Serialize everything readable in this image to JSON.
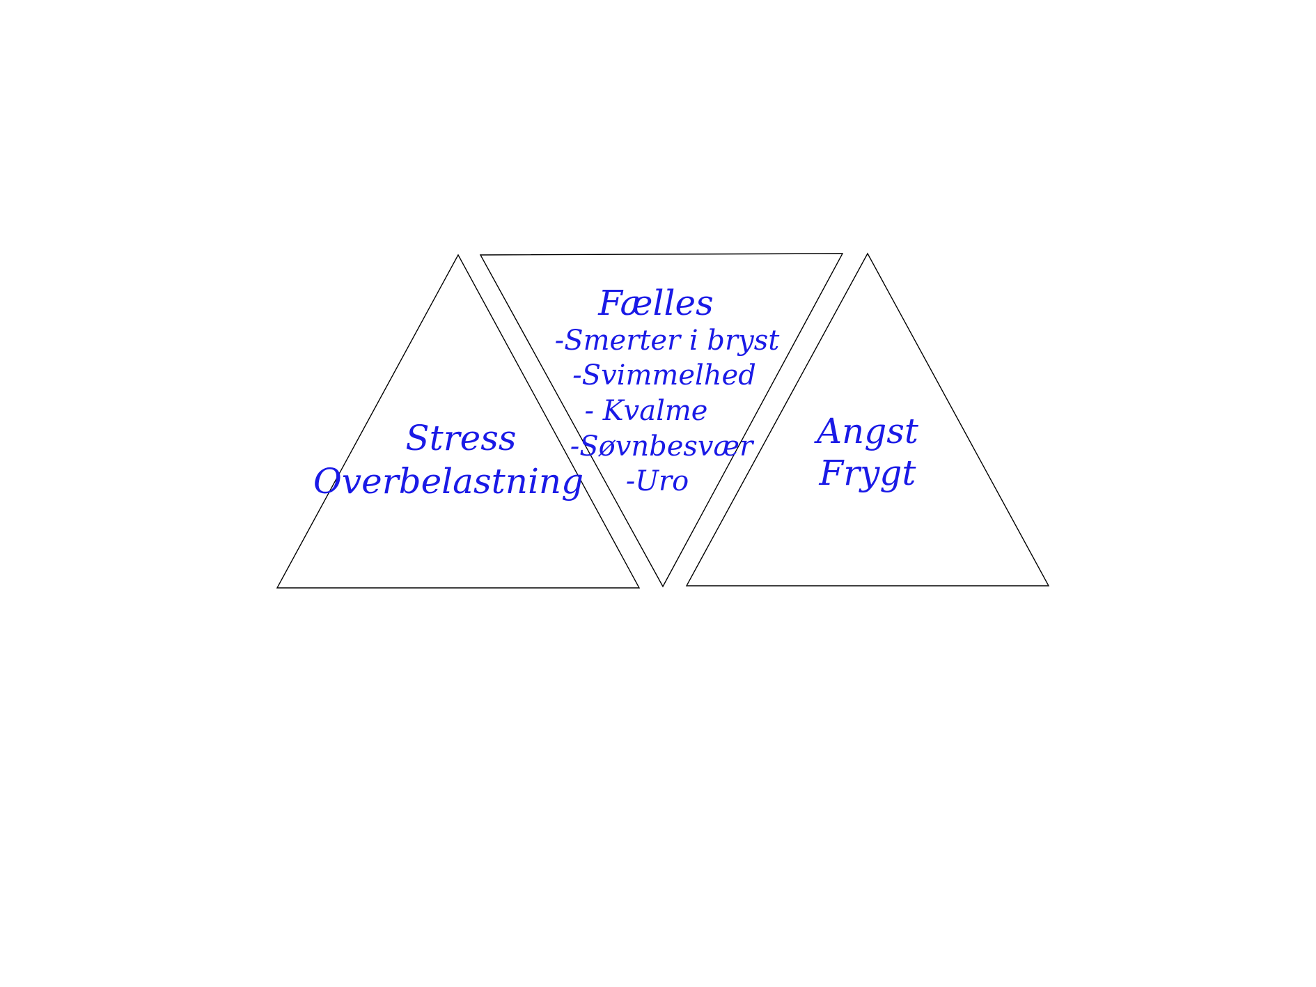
{
  "colors": {
    "text": "#1a1ae6",
    "outline": "#000000",
    "background": "#ffffff"
  },
  "left_triangle": {
    "lines": [
      "Stress",
      "Overbelastning"
    ]
  },
  "middle_triangle": {
    "heading": "Fælles",
    "items": [
      "-Smerter i bryst",
      "-Svimmelhed",
      "- Kvalme",
      "-Søvnbesvær",
      "-Uro"
    ]
  },
  "right_triangle": {
    "lines": [
      "Angst",
      "Frygt"
    ]
  }
}
